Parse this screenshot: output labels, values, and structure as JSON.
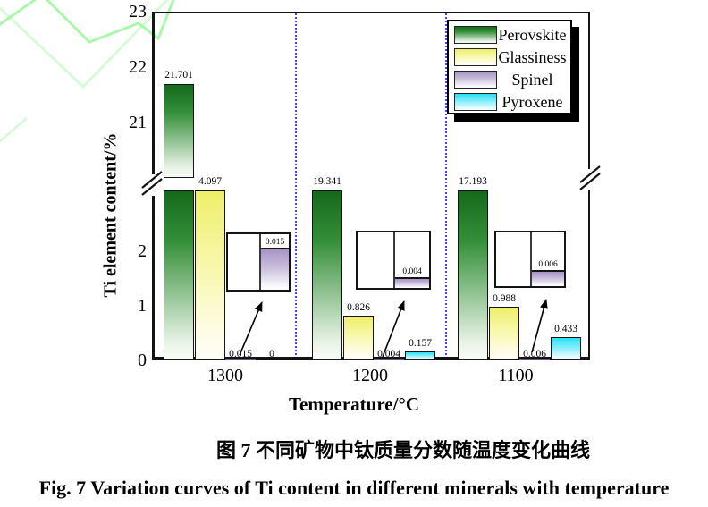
{
  "figure": {
    "caption_zh": "图 7 不同矿物中钛质量分数随温度变化曲线",
    "caption_en": "Fig. 7  Variation curves of Ti content in different minerals with temperature"
  },
  "chart_data": {
    "type": "bar",
    "title": "",
    "xlabel": "Temperature/°C",
    "ylabel": "Ti element content/%",
    "categories": [
      "1300",
      "1200",
      "1100"
    ],
    "series": [
      {
        "name": "Perovskite",
        "color_top": "#15691b",
        "values": [
          21.701,
          19.341,
          17.193
        ],
        "labels": [
          "21.701",
          "19.341",
          "17.193"
        ]
      },
      {
        "name": "Glassiness",
        "color_top": "#eeee6a",
        "values": [
          4.097,
          0.826,
          0.988
        ],
        "labels": [
          "4.097",
          "0.826",
          "0.988"
        ]
      },
      {
        "name": "Spinel",
        "color_top": "#a793c6",
        "values": [
          0.015,
          0.004,
          0.006
        ],
        "labels": [
          "0.015",
          "0.004",
          "0.006"
        ]
      },
      {
        "name": "Pyroxene",
        "color_top": "#29dff6",
        "values": [
          0,
          0.157,
          0.433
        ],
        "labels": [
          "0",
          "0.157",
          "0.433"
        ]
      }
    ],
    "legend": [
      "Perovskite",
      "Glassiness",
      "Spinel",
      "Pyroxene"
    ],
    "legend_position": "top-right",
    "y_axis": {
      "broken": true,
      "upper_ticks": [
        "23",
        "22",
        "21"
      ],
      "lower_ticks": [
        "2",
        "1",
        "0"
      ],
      "upper_range": [
        20,
        23
      ],
      "lower_range": [
        0,
        3
      ]
    },
    "insets": {
      "description": "zoom boxes magnifying the tiny Spinel bars",
      "scale_max": 0.02,
      "labels": [
        "0.015",
        "0.004",
        "0.006"
      ]
    },
    "separator_color": "#4545e8",
    "grid": false
  }
}
